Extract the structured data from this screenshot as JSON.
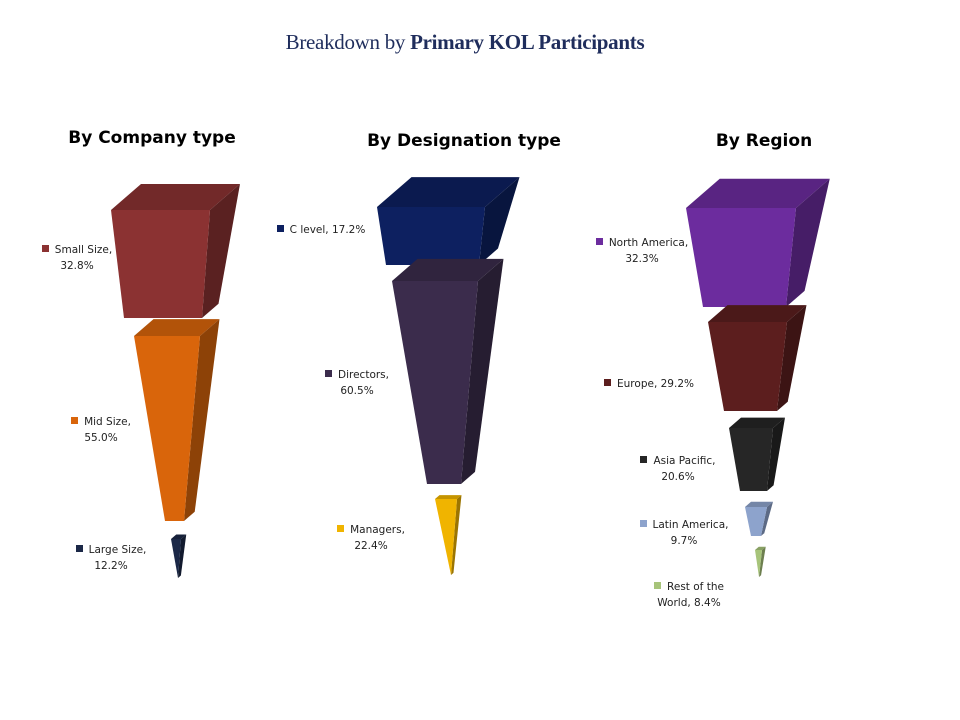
{
  "page": {
    "title_prefix": "Breakdown by ",
    "title_bold": "Primary KOL Participants"
  },
  "chart_data": [
    {
      "type": "funnel",
      "title": "By Company type",
      "segments": [
        {
          "label": "Small Size,",
          "value_text": "32.8%",
          "value": 32.8,
          "color": "#8b3232"
        },
        {
          "label": "Mid Size,",
          "value_text": "55.0%",
          "value": 55.0,
          "color": "#d9650b"
        },
        {
          "label": "Large Size,",
          "value_text": "12.2%",
          "value": 12.2,
          "color": "#1b2847"
        }
      ]
    },
    {
      "type": "funnel",
      "title": "By Designation  type",
      "segments": [
        {
          "label": "C level, 17.2%",
          "value_text": "",
          "value": 17.2,
          "color": "#0d2060"
        },
        {
          "label": "Directors,",
          "value_text": "60.5%",
          "value": 60.5,
          "color": "#3b2c4c"
        },
        {
          "label": "Managers,",
          "value_text": "22.4%",
          "value": 22.4,
          "color": "#f0b400"
        }
      ]
    },
    {
      "type": "funnel",
      "title": "By Region",
      "segments": [
        {
          "label": "North America,",
          "value_text": "32.3%",
          "value": 32.3,
          "color": "#6c2c9e"
        },
        {
          "label": "Europe, 29.2%",
          "value_text": "",
          "value": 29.2,
          "color": "#5c1e1e"
        },
        {
          "label": "Asia Pacific,",
          "value_text": "20.6%",
          "value": 20.6,
          "color": "#262626"
        },
        {
          "label": "Latin America,",
          "value_text": "9.7%",
          "value": 9.7,
          "color": "#8da3cc"
        },
        {
          "label": "Rest of the",
          "value_text": "World, 8.4%",
          "value": 8.4,
          "color": "#a7c47a"
        }
      ]
    }
  ]
}
